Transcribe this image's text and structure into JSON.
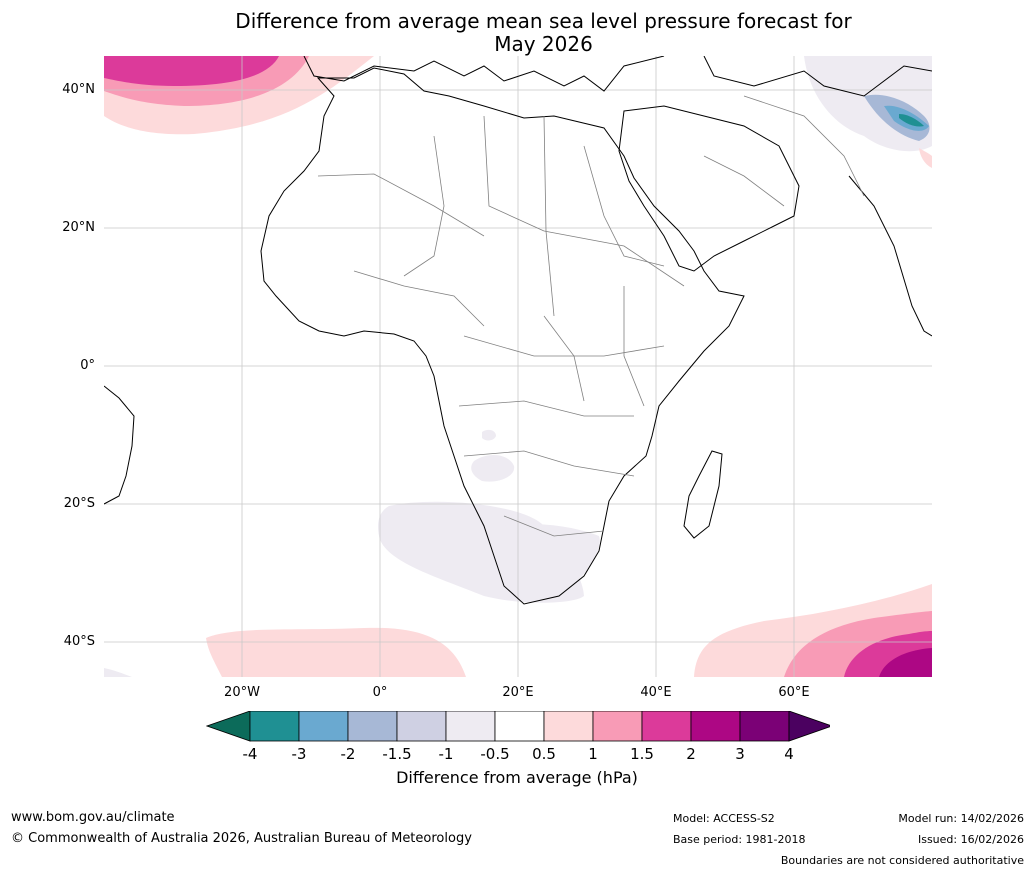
{
  "title": {
    "line1": "Difference from average mean sea level pressure forecast for",
    "line2": "May 2026"
  },
  "map": {
    "lat_labels": [
      "40°N",
      "20°N",
      "0°",
      "20°S",
      "40°S"
    ],
    "lon_labels": [
      "20°W",
      "0°",
      "20°E",
      "40°E",
      "60°E"
    ]
  },
  "colorbar": {
    "ticks": [
      "-4",
      "-3",
      "-2",
      "-1.5",
      "-1",
      "-0.5",
      "0.5",
      "1",
      "1.5",
      "2",
      "3",
      "4"
    ],
    "colors": [
      "#0c6b5a",
      "#1f9093",
      "#6aa9d0",
      "#a7b8d6",
      "#cfd0e3",
      "#eeebf2",
      "#ffffff",
      "#fddadb",
      "#f89bb6",
      "#dc3a9a",
      "#ad0784",
      "#7b0176",
      "#4b0160"
    ],
    "label": "Difference from average (hPa)"
  },
  "footer": {
    "website": "www.bom.gov.au/climate",
    "copyright": "© Commonwealth of Australia 2026, Australian Bureau of Meteorology",
    "model": "Model: ACCESS-S2",
    "base_period": "Base period: 1981-2018",
    "model_run": "Model run: 14/02/2026",
    "issued": "Issued: 16/02/2026",
    "disclaimer": "Boundaries are not considered authoritative"
  }
}
